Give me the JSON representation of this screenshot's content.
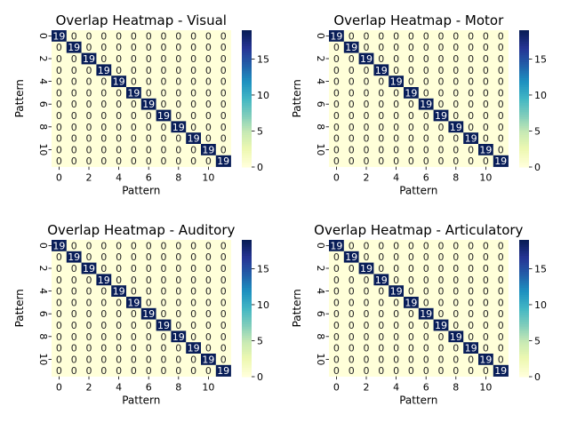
{
  "colormap": {
    "name": "YlGnBu",
    "stops": [
      "#ffffd9",
      "#edf8b1",
      "#c7e9b4",
      "#7fcdbb",
      "#41b6c4",
      "#1d91c0",
      "#225ea8",
      "#253494",
      "#081d58"
    ]
  },
  "text_colors": {
    "dark_text": "#262626",
    "light_text": "#ffffff"
  },
  "chart_data": [
    {
      "type": "heatmap",
      "title": "Overlap Heatmap - Visual",
      "xlabel": "Pattern",
      "ylabel": "Pattern",
      "n": 12,
      "diagonal_value": 19,
      "off_diagonal_value": 0,
      "x_ticks": [
        "0",
        "2",
        "4",
        "6",
        "8",
        "10"
      ],
      "y_ticks": [
        "0",
        "2",
        "4",
        "6",
        "8",
        "10"
      ],
      "colorbar_ticks": [
        "0",
        "5",
        "10",
        "15"
      ],
      "colorbar_range": [
        0,
        19
      ]
    },
    {
      "type": "heatmap",
      "title": "Overlap Heatmap - Motor",
      "xlabel": "Pattern",
      "ylabel": "Pattern",
      "n": 12,
      "diagonal_value": 19,
      "off_diagonal_value": 0,
      "x_ticks": [
        "0",
        "2",
        "4",
        "6",
        "8",
        "10"
      ],
      "y_ticks": [
        "0",
        "2",
        "4",
        "6",
        "8",
        "10"
      ],
      "colorbar_ticks": [
        "0",
        "5",
        "10",
        "15"
      ],
      "colorbar_range": [
        0,
        19
      ]
    },
    {
      "type": "heatmap",
      "title": "Overlap Heatmap - Auditory",
      "xlabel": "Pattern",
      "ylabel": "Pattern",
      "n": 12,
      "diagonal_value": 19,
      "off_diagonal_value": 0,
      "x_ticks": [
        "0",
        "2",
        "4",
        "6",
        "8",
        "10"
      ],
      "y_ticks": [
        "0",
        "2",
        "4",
        "6",
        "8",
        "10"
      ],
      "colorbar_ticks": [
        "0",
        "5",
        "10",
        "15"
      ],
      "colorbar_range": [
        0,
        19
      ]
    },
    {
      "type": "heatmap",
      "title": "Overlap Heatmap - Articulatory",
      "xlabel": "Pattern",
      "ylabel": "Pattern",
      "n": 12,
      "diagonal_value": 19,
      "off_diagonal_value": 0,
      "x_ticks": [
        "0",
        "2",
        "4",
        "6",
        "8",
        "10"
      ],
      "y_ticks": [
        "0",
        "2",
        "4",
        "6",
        "8",
        "10"
      ],
      "colorbar_ticks": [
        "0",
        "5",
        "10",
        "15"
      ],
      "colorbar_range": [
        0,
        19
      ]
    }
  ]
}
